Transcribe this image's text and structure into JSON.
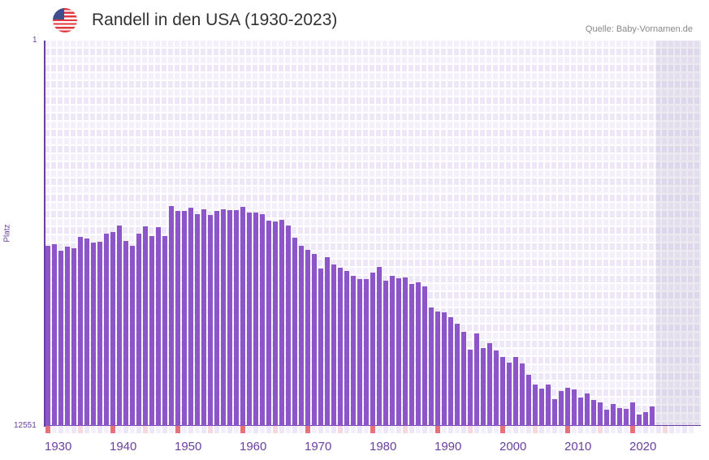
{
  "header": {
    "title": "Randell in den USA (1930-2023)",
    "source": "Quelle: Baby-Vornamen.de",
    "flag": "us-flag-icon"
  },
  "chart_data": {
    "type": "bar",
    "title": "Randell in den USA (1930-2023)",
    "xlabel": "",
    "ylabel": "Platz",
    "ylim": [
      1,
      12551
    ],
    "y_inverted": true,
    "y_ticks": [
      "1",
      "12551"
    ],
    "x_ticks": [
      "1930",
      "1940",
      "1950",
      "1960",
      "1970",
      "1980",
      "1990",
      "2000",
      "2010",
      "2020"
    ],
    "xlim": [
      1930,
      2030
    ],
    "bar_color": "#8c55c8",
    "x": [
      1930,
      1931,
      1932,
      1933,
      1934,
      1935,
      1936,
      1937,
      1938,
      1939,
      1940,
      1941,
      1942,
      1943,
      1944,
      1945,
      1946,
      1947,
      1948,
      1949,
      1950,
      1951,
      1952,
      1953,
      1954,
      1955,
      1956,
      1957,
      1958,
      1959,
      1960,
      1961,
      1962,
      1963,
      1964,
      1965,
      1966,
      1967,
      1968,
      1969,
      1970,
      1971,
      1972,
      1973,
      1974,
      1975,
      1976,
      1977,
      1978,
      1979,
      1980,
      1981,
      1982,
      1983,
      1984,
      1985,
      1986,
      1987,
      1988,
      1989,
      1990,
      1991,
      1992,
      1993,
      1994,
      1995,
      1996,
      1997,
      1998,
      1999,
      2000,
      2001,
      2002,
      2003,
      2004,
      2005,
      2006,
      2007,
      2008,
      2009,
      2010,
      2011,
      2012,
      2013,
      2014,
      2015,
      2016,
      2017,
      2018,
      2019,
      2020,
      2021,
      2022,
      2023
    ],
    "values": [
      6676,
      6624,
      6835,
      6703,
      6756,
      6386,
      6439,
      6571,
      6545,
      6281,
      6228,
      6017,
      6519,
      6676,
      6281,
      6043,
      6360,
      6070,
      6360,
      5383,
      5541,
      5541,
      5436,
      5647,
      5488,
      5673,
      5541,
      5488,
      5515,
      5515,
      5409,
      5594,
      5594,
      5647,
      5858,
      5893,
      5840,
      6025,
      6421,
      6685,
      6817,
      6949,
      7425,
      7055,
      7293,
      7399,
      7504,
      7663,
      7768,
      7768,
      7557,
      7372,
      7821,
      7663,
      7742,
      7716,
      7927,
      7874,
      8006,
      8693,
      8825,
      8852,
      9010,
      9222,
      9486,
      10067,
      9539,
      10014,
      9856,
      10093,
      10305,
      10490,
      10305,
      10516,
      10886,
      11203,
      11335,
      11203,
      11679,
      11414,
      11309,
      11362,
      11626,
      11494,
      11705,
      11784,
      12022,
      11837,
      11969,
      11996,
      11784,
      12180,
      12101,
      11916
    ]
  }
}
